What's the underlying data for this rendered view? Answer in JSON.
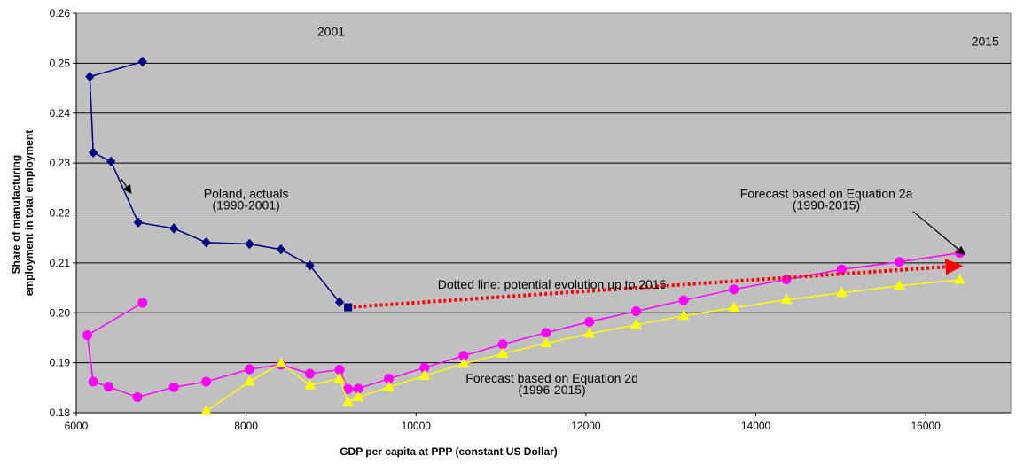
{
  "chart_data": {
    "type": "line",
    "title": "",
    "xlabel": "GDP per capita at PPP (constant US Dollar)",
    "ylabel_lines": [
      "Share of manufacturing",
      "employment in total employment"
    ],
    "xlim": [
      6000,
      17000
    ],
    "ylim": [
      0.18,
      0.26
    ],
    "x_ticks": [
      6000,
      8000,
      10000,
      12000,
      14000,
      16000
    ],
    "y_ticks": [
      "0.18",
      "0.19",
      "0.20",
      "0.21",
      "0.22",
      "0.23",
      "0.24",
      "0.25",
      "0.26"
    ],
    "grid": "horizontal",
    "plot_background": "#c0c0c0",
    "series": [
      {
        "color": "#000080",
        "marker": "diamond",
        "points": [
          [
            6780,
            0.2503
          ],
          [
            6160,
            0.2473
          ],
          [
            6200,
            0.2321
          ],
          [
            6410,
            0.2303
          ],
          [
            6730,
            0.2181
          ],
          [
            7150,
            0.2169
          ],
          [
            7530,
            0.2141
          ],
          [
            8040,
            0.2138
          ],
          [
            8410,
            0.2127
          ],
          [
            8750,
            0.2095
          ],
          [
            9100,
            0.2021
          ]
        ]
      },
      {
        "color": "#ff00ff",
        "marker": "circle",
        "points": [
          [
            6780,
            0.202
          ],
          [
            6130,
            0.1955
          ],
          [
            6200,
            0.1862
          ],
          [
            6380,
            0.1852
          ],
          [
            6720,
            0.1831
          ],
          [
            7150,
            0.1851
          ],
          [
            7530,
            0.1862
          ],
          [
            8040,
            0.1887
          ],
          [
            8410,
            0.1896
          ],
          [
            8750,
            0.1878
          ],
          [
            9100,
            0.1886
          ],
          [
            9200,
            0.1847
          ],
          [
            9320,
            0.1848
          ],
          [
            9680,
            0.1868
          ],
          [
            10100,
            0.189
          ],
          [
            10560,
            0.1914
          ],
          [
            11020,
            0.1937
          ],
          [
            11530,
            0.196
          ],
          [
            12040,
            0.1982
          ],
          [
            12590,
            0.2003
          ],
          [
            13150,
            0.2025
          ],
          [
            13740,
            0.2047
          ],
          [
            14360,
            0.2067
          ],
          [
            15010,
            0.2087
          ],
          [
            15690,
            0.2102
          ],
          [
            16400,
            0.212
          ]
        ]
      },
      {
        "color": "#ffff00",
        "marker": "triangle",
        "points": [
          [
            7530,
            0.1803
          ],
          [
            8040,
            0.1862
          ],
          [
            8410,
            0.1899
          ],
          [
            8750,
            0.1855
          ],
          [
            9100,
            0.1868
          ],
          [
            9200,
            0.1821
          ],
          [
            9320,
            0.1831
          ],
          [
            9680,
            0.1851
          ],
          [
            10100,
            0.1874
          ],
          [
            10560,
            0.1898
          ],
          [
            11020,
            0.1918
          ],
          [
            11530,
            0.1939
          ],
          [
            12040,
            0.1958
          ],
          [
            12590,
            0.1976
          ],
          [
            13150,
            0.1994
          ],
          [
            13740,
            0.201
          ],
          [
            14360,
            0.2026
          ],
          [
            15010,
            0.204
          ],
          [
            15690,
            0.2054
          ],
          [
            16400,
            0.2066
          ]
        ]
      }
    ],
    "dotted_line": {
      "color": "#ff0000",
      "from": [
        9200,
        0.2011
      ],
      "to": [
        16400,
        0.2094
      ],
      "start_marker_color": "#000080"
    },
    "annotations": [
      {
        "id": "year-2001",
        "text": "2001",
        "x": 9000,
        "y": 0.2555
      },
      {
        "id": "year-2015",
        "text": "2015",
        "x": 16700,
        "y": 0.2535
      },
      {
        "id": "poland-line1",
        "text": "Poland, actuals",
        "x": 8000,
        "y": 0.223
      },
      {
        "id": "poland-line2",
        "text": "(1990-2001)",
        "x": 8000,
        "y": 0.2207
      },
      {
        "id": "eq2a-line1",
        "text": "Forecast based on Equation 2a",
        "x": 14830,
        "y": 0.223
      },
      {
        "id": "eq2a-line2",
        "text": "(1990-2015)",
        "x": 14830,
        "y": 0.2207
      },
      {
        "id": "dotted-note",
        "text": "Dotted line: potential evolution up to 2015",
        "x": 11600,
        "y": 0.2048
      },
      {
        "id": "eq2d-line1",
        "text": "Forecast based on Equation 2d",
        "x": 11600,
        "y": 0.186
      },
      {
        "id": "eq2d-line2",
        "text": "(1996-2015)",
        "x": 11600,
        "y": 0.1837
      }
    ],
    "arrows": [
      {
        "id": "poland-arrow",
        "from": [
          6530,
          0.2268
        ],
        "to": [
          6640,
          0.2241
        ]
      },
      {
        "id": "eq2a-arrow",
        "from": [
          15850,
          0.2203
        ],
        "to": [
          16450,
          0.2118
        ]
      }
    ]
  }
}
